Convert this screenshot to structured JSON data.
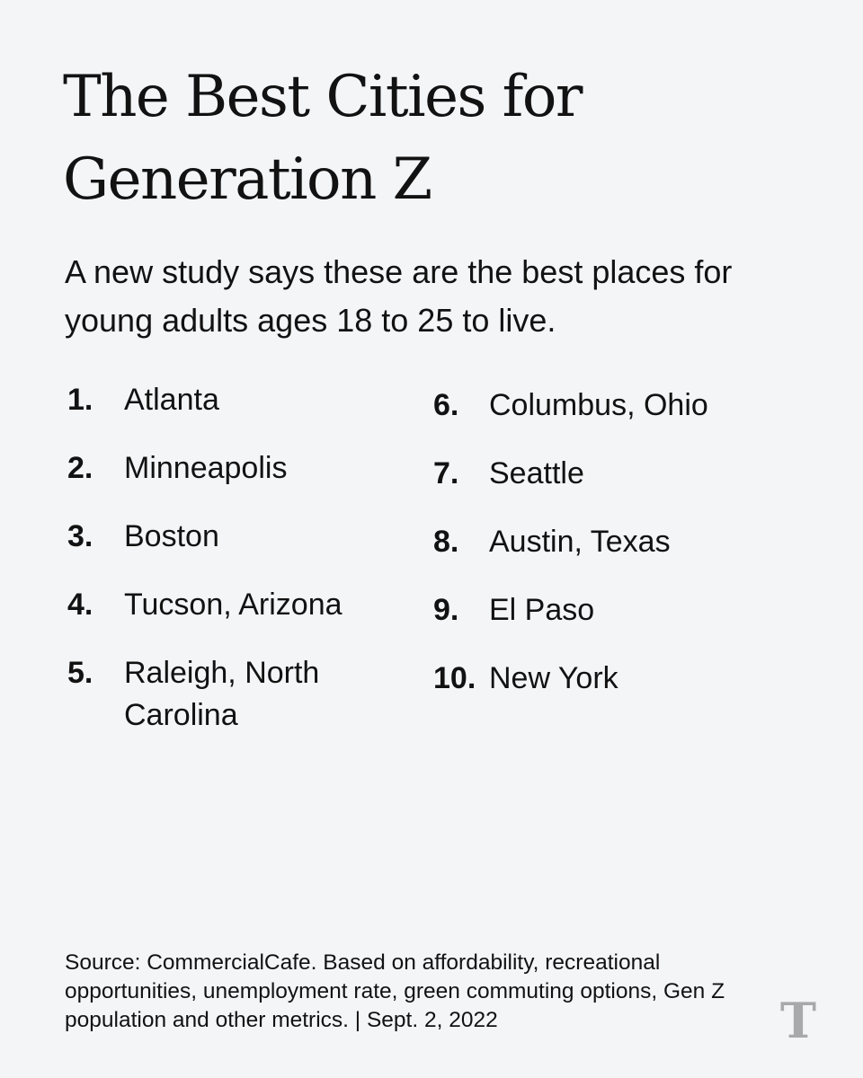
{
  "title": "The Best Cities for Generation Z",
  "subtitle": "A new study says these are the best places for young adults ages 18 to 25 to live.",
  "rankings_left": [
    {
      "rank": "1.",
      "city": "Atlanta"
    },
    {
      "rank": "2.",
      "city": "Minneapolis"
    },
    {
      "rank": "3.",
      "city": "Boston"
    },
    {
      "rank": "4.",
      "city": "Tucson, Arizona"
    },
    {
      "rank": "5.",
      "city": "Raleigh, North Carolina"
    }
  ],
  "rankings_right": [
    {
      "rank": "6.",
      "city": "Columbus, Ohio"
    },
    {
      "rank": "7.",
      "city": "Seattle"
    },
    {
      "rank": "8.",
      "city": "Austin, Texas"
    },
    {
      "rank": "9.",
      "city": "El Paso"
    },
    {
      "rank": "10.",
      "city": "New York"
    }
  ],
  "source": "Source: CommercialCafe. Based on affordability, recreational opportunities, unemployment rate, green commuting options, Gen Z population and other metrics. | Sept. 2, 2022",
  "logo": {
    "icon": "nyt-t-logo-icon",
    "glyph": "T",
    "color": "#a8a9ab"
  }
}
